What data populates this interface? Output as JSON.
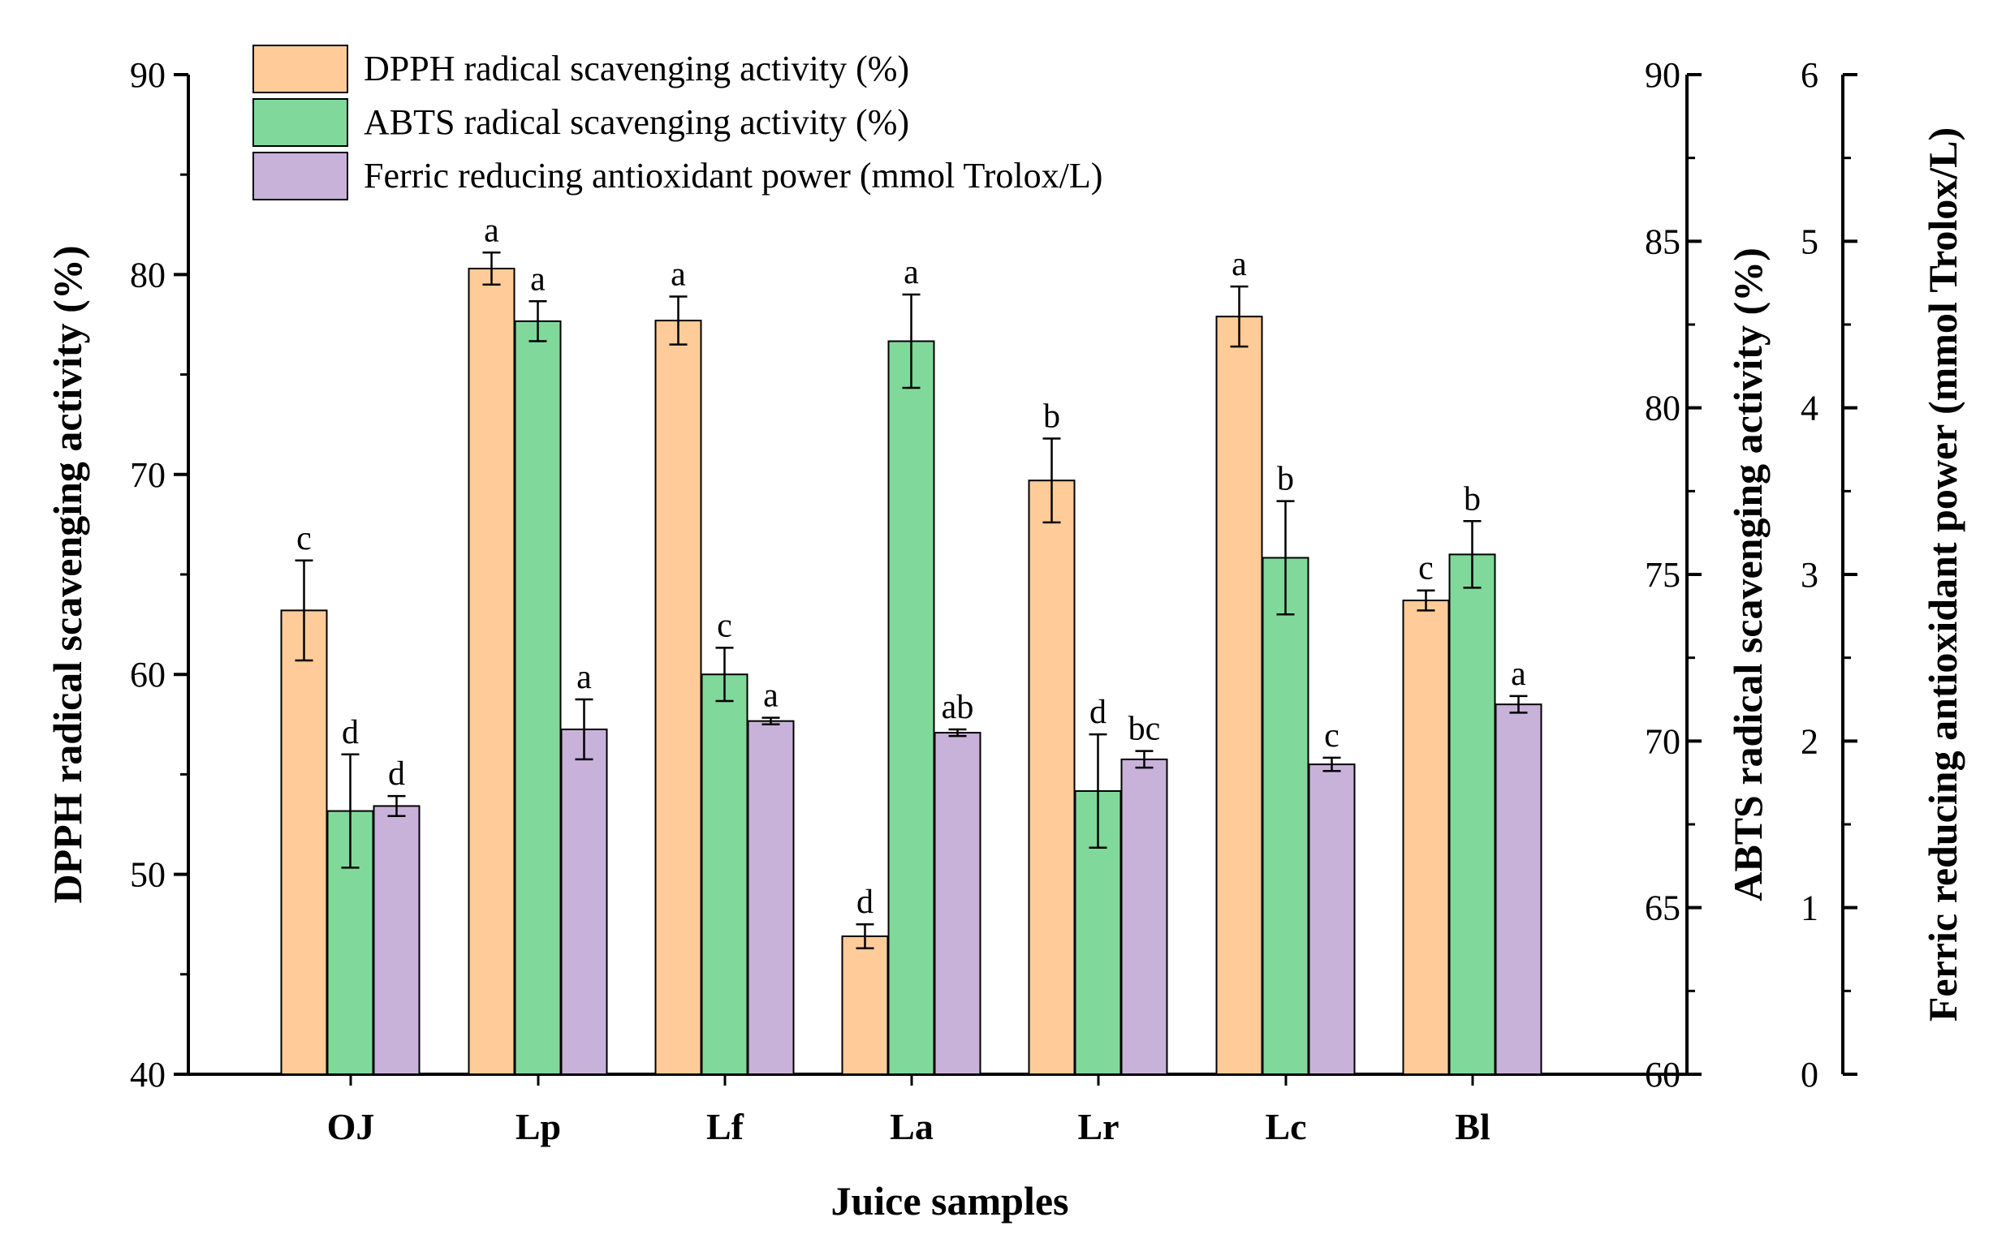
{
  "chart_data": {
    "type": "bar",
    "xlabel": "Juice samples",
    "categories": [
      "OJ",
      "Lp",
      "Lf",
      "La",
      "Lr",
      "Lc",
      "Bl"
    ],
    "axes": {
      "left": {
        "label": "DPPH radical scavenging activity (%)",
        "min": 40,
        "max": 90,
        "ticks": [
          40,
          50,
          60,
          70,
          80,
          90
        ]
      },
      "right1": {
        "label": "ABTS radical scavenging activity (%)",
        "min": 60,
        "max": 90,
        "ticks": [
          60,
          65,
          70,
          75,
          80,
          85,
          90
        ]
      },
      "right2": {
        "label": "Ferric reducing antioxidant power (mmol Trolox/L)",
        "min": 0,
        "max": 6,
        "ticks": [
          0,
          1,
          2,
          3,
          4,
          5,
          6
        ]
      }
    },
    "series": [
      {
        "name": "DPPH radical scavenging activity (%)",
        "axis": "left",
        "color": "#FFCC99",
        "values": [
          63.2,
          80.3,
          77.7,
          46.9,
          69.7,
          77.9,
          63.7
        ],
        "errors": [
          2.5,
          0.8,
          1.2,
          0.6,
          2.1,
          1.5,
          0.5
        ],
        "labels": [
          "c",
          "a",
          "a",
          "d",
          "b",
          "a",
          "c"
        ]
      },
      {
        "name": "ABTS radical scavenging activity (%)",
        "axis": "right1",
        "color": "#80D99A",
        "values": [
          67.9,
          82.6,
          72.0,
          82.0,
          68.5,
          75.5,
          75.6
        ],
        "errors": [
          1.7,
          0.6,
          0.8,
          1.4,
          1.7,
          1.7,
          1.0
        ],
        "labels": [
          "d",
          "a",
          "c",
          "a",
          "d",
          "b",
          "b"
        ]
      },
      {
        "name": "Ferric reducing antioxidant power (mmol Trolox/L)",
        "axis": "right2",
        "color": "#C9B2DA",
        "values": [
          1.61,
          2.07,
          2.12,
          2.05,
          1.89,
          1.86,
          2.22
        ],
        "errors": [
          0.06,
          0.18,
          0.02,
          0.02,
          0.05,
          0.04,
          0.05
        ],
        "labels": [
          "d",
          "a",
          "a",
          "ab",
          "bc",
          "c",
          "a"
        ]
      }
    ]
  }
}
